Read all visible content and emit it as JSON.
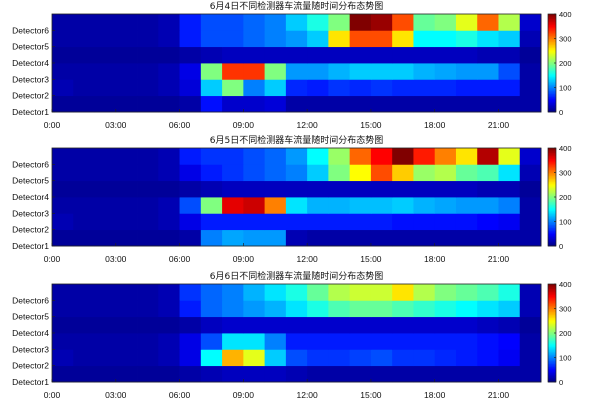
{
  "colors": {
    "jet_low": "#00008f",
    "jet_high": "#800000",
    "background": "#ffffff",
    "frame": "#222222"
  },
  "chart_data": [
    {
      "type": "heatmap",
      "title": "6月4日不同检测器车流量随时间分布态势图",
      "y_categories": [
        "Detector1",
        "Detector2",
        "Detector3",
        "Detector4",
        "Detector5",
        "Detector6"
      ],
      "x_tick_labels": [
        "0:00",
        "03:00",
        "06:00",
        "09:00",
        "12:00",
        "15:00",
        "18:00",
        "21:00"
      ],
      "x_tick_hours": [
        0,
        3,
        6,
        9,
        12,
        15,
        18,
        21
      ],
      "x_range_hours": [
        0,
        23
      ],
      "bin_hours": 1,
      "color_scale": "jet",
      "colorbar_range": [
        0,
        400
      ],
      "colorbar_ticks": [
        0,
        100,
        200,
        300,
        400
      ],
      "grid": false,
      "values": [
        [
          10,
          10,
          10,
          10,
          10,
          10,
          15,
          55,
          30,
          30,
          35,
          15,
          15,
          15,
          15,
          15,
          15,
          15,
          15,
          15,
          15,
          15,
          15
        ],
        [
          20,
          15,
          15,
          15,
          15,
          20,
          35,
          130,
          200,
          100,
          130,
          65,
          60,
          70,
          65,
          70,
          65,
          65,
          65,
          60,
          60,
          60,
          15
        ],
        [
          15,
          15,
          15,
          15,
          15,
          20,
          40,
          200,
          330,
          330,
          200,
          110,
          110,
          120,
          130,
          130,
          130,
          120,
          115,
          110,
          110,
          80,
          15
        ],
        [
          10,
          10,
          10,
          10,
          10,
          10,
          15,
          20,
          25,
          25,
          25,
          25,
          25,
          25,
          25,
          25,
          25,
          25,
          25,
          25,
          20,
          20,
          10
        ],
        [
          15,
          15,
          15,
          15,
          15,
          20,
          60,
          80,
          80,
          90,
          100,
          110,
          130,
          260,
          320,
          320,
          260,
          150,
          150,
          160,
          140,
          130,
          20
        ],
        [
          15,
          15,
          15,
          15,
          15,
          20,
          60,
          80,
          80,
          90,
          100,
          130,
          160,
          200,
          400,
          390,
          320,
          190,
          200,
          240,
          310,
          220,
          30
        ]
      ]
    },
    {
      "type": "heatmap",
      "title": "6月5日不同检测器车流量随时间分布态势图",
      "y_categories": [
        "Detector1",
        "Detector2",
        "Detector3",
        "Detector4",
        "Detector5",
        "Detector6"
      ],
      "x_tick_labels": [
        "0:00",
        "03:00",
        "06:00",
        "09:00",
        "12:00",
        "15:00",
        "18:00",
        "21:00"
      ],
      "x_tick_hours": [
        0,
        3,
        6,
        9,
        12,
        15,
        18,
        21
      ],
      "x_range_hours": [
        0,
        23
      ],
      "bin_hours": 1,
      "color_scale": "jet",
      "colorbar_range": [
        0,
        400
      ],
      "colorbar_ticks": [
        0,
        100,
        200,
        300,
        400
      ],
      "grid": false,
      "values": [
        [
          10,
          10,
          10,
          10,
          10,
          10,
          15,
          100,
          115,
          110,
          110,
          20,
          15,
          15,
          15,
          15,
          15,
          15,
          15,
          15,
          15,
          15,
          15
        ],
        [
          20,
          15,
          15,
          15,
          15,
          20,
          40,
          60,
          60,
          60,
          60,
          60,
          60,
          60,
          60,
          60,
          55,
          55,
          55,
          55,
          50,
          45,
          15
        ],
        [
          15,
          15,
          15,
          15,
          15,
          20,
          80,
          200,
          360,
          370,
          300,
          140,
          120,
          120,
          125,
          125,
          130,
          120,
          115,
          110,
          110,
          100,
          15
        ],
        [
          10,
          10,
          10,
          10,
          10,
          10,
          15,
          20,
          25,
          25,
          25,
          25,
          25,
          25,
          25,
          25,
          25,
          25,
          25,
          25,
          20,
          20,
          10
        ],
        [
          15,
          15,
          15,
          15,
          15,
          20,
          40,
          60,
          70,
          80,
          90,
          100,
          130,
          200,
          250,
          320,
          270,
          210,
          220,
          190,
          180,
          140,
          20
        ],
        [
          15,
          15,
          15,
          15,
          15,
          20,
          60,
          70,
          70,
          80,
          90,
          110,
          150,
          210,
          310,
          350,
          400,
          340,
          300,
          260,
          380,
          240,
          30
        ]
      ]
    },
    {
      "type": "heatmap",
      "title": "6月6日不同检测器车流量随时间分布态势图",
      "y_categories": [
        "Detector1",
        "Detector2",
        "Detector3",
        "Detector4",
        "Detector5",
        "Detector6"
      ],
      "x_tick_labels": [
        "0:00",
        "03:00",
        "06:00",
        "09:00",
        "12:00",
        "15:00",
        "18:00",
        "21:00"
      ],
      "x_tick_hours": [
        0,
        3,
        6,
        9,
        12,
        15,
        18,
        21
      ],
      "x_range_hours": [
        0,
        23
      ],
      "bin_hours": 1,
      "color_scale": "jet",
      "colorbar_range": [
        0,
        400
      ],
      "colorbar_ticks": [
        0,
        100,
        200,
        300,
        400
      ],
      "grid": false,
      "values": [
        [
          10,
          10,
          10,
          10,
          10,
          10,
          15,
          20,
          25,
          25,
          25,
          20,
          15,
          15,
          15,
          15,
          15,
          15,
          15,
          15,
          15,
          15,
          15
        ],
        [
          20,
          15,
          15,
          15,
          15,
          20,
          40,
          150,
          280,
          240,
          130,
          80,
          70,
          70,
          75,
          80,
          70,
          70,
          65,
          60,
          55,
          45,
          15
        ],
        [
          15,
          15,
          15,
          15,
          15,
          20,
          40,
          80,
          140,
          140,
          100,
          60,
          60,
          60,
          60,
          60,
          60,
          60,
          60,
          60,
          55,
          50,
          15
        ],
        [
          10,
          10,
          10,
          10,
          10,
          10,
          15,
          25,
          30,
          30,
          30,
          30,
          30,
          30,
          30,
          30,
          30,
          30,
          30,
          30,
          25,
          20,
          10
        ],
        [
          15,
          15,
          15,
          15,
          15,
          20,
          60,
          90,
          100,
          110,
          120,
          140,
          160,
          180,
          190,
          190,
          180,
          170,
          160,
          150,
          140,
          130,
          20
        ],
        [
          15,
          15,
          15,
          15,
          15,
          20,
          70,
          90,
          100,
          120,
          140,
          160,
          190,
          220,
          230,
          230,
          260,
          220,
          200,
          190,
          180,
          160,
          20
        ]
      ]
    }
  ]
}
